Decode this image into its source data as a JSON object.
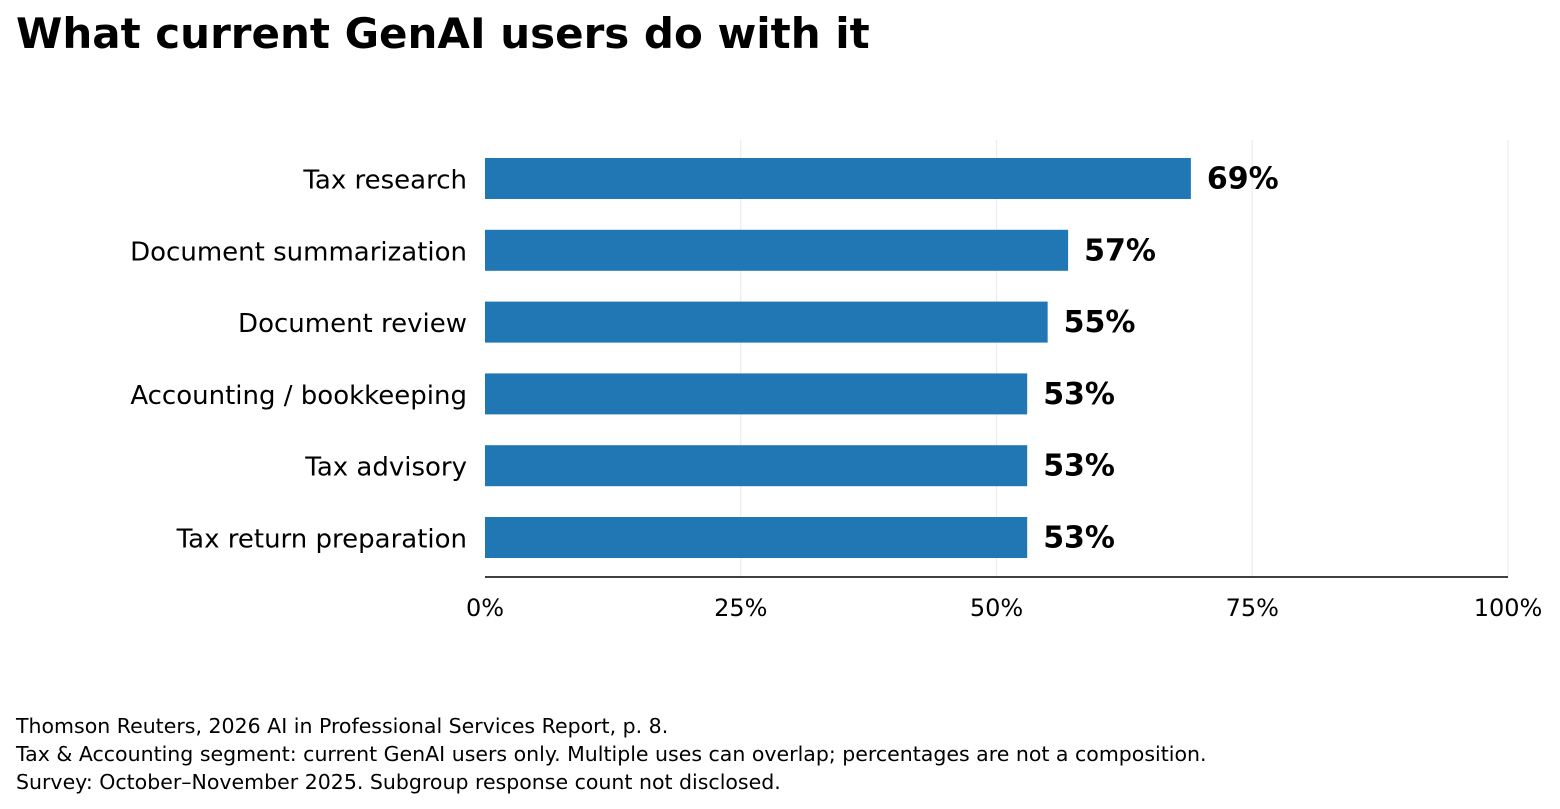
{
  "chart_data": {
    "type": "bar",
    "orientation": "horizontal",
    "title": "What current GenAI users do with it",
    "categories": [
      "Tax research",
      "Document summarization",
      "Document review",
      "Accounting / bookkeeping",
      "Tax advisory",
      "Tax return preparation"
    ],
    "values": [
      69,
      57,
      55,
      53,
      53,
      53
    ],
    "value_labels": [
      "69%",
      "57%",
      "55%",
      "53%",
      "53%",
      "53%"
    ],
    "xlim": [
      0,
      100
    ],
    "xticks": [
      0,
      25,
      50,
      75,
      100
    ],
    "xtick_labels": [
      "0%",
      "25%",
      "50%",
      "75%",
      "100%"
    ],
    "xlabel": "",
    "ylabel": "",
    "grid": "vertical",
    "legend": "none",
    "bar_color": "#2077b4"
  },
  "notes": [
    "Thomson Reuters, 2026 AI in Professional Services Report, p. 8.",
    "Tax & Accounting segment: current GenAI users only. Multiple uses can overlap; percentages are not a composition.",
    "Survey: October–November 2025. Subgroup response count not disclosed."
  ]
}
